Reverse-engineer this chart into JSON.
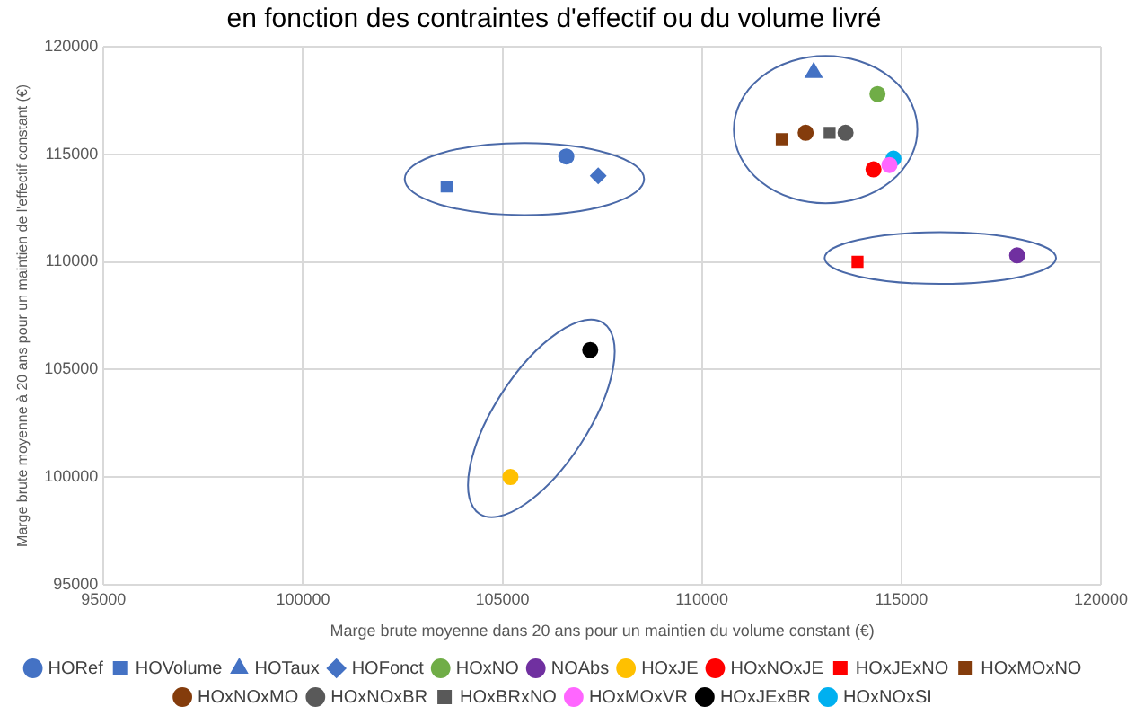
{
  "chart_data": {
    "type": "scatter",
    "title": "en fonction des contraintes d'effectif ou du volume livré",
    "xlabel": "Marge brute moyenne dans 20 ans pour un maintien du volume constant (€)",
    "ylabel": "Marge brute moyenne à 20 ans pour un maintien de l'effectif constant (€)",
    "xlim": [
      95000,
      120000
    ],
    "xticks": [
      95000,
      100000,
      105000,
      110000,
      115000,
      120000
    ],
    "ylim": [
      95000,
      120000
    ],
    "yticks": [
      95000,
      100000,
      105000,
      110000,
      115000,
      120000
    ],
    "grid": true,
    "legend": "bottom",
    "series": [
      {
        "name": "HORef",
        "color": "#4472c4",
        "marker": "circle",
        "x": [
          106600
        ],
        "values": [
          114900
        ]
      },
      {
        "name": "HOVolume",
        "color": "#4472c4",
        "marker": "square",
        "x": [
          103600
        ],
        "values": [
          113500
        ]
      },
      {
        "name": "HOTaux",
        "color": "#4472c4",
        "marker": "triangle",
        "x": [
          112800
        ],
        "values": [
          118800
        ]
      },
      {
        "name": "HOFonct",
        "color": "#4472c4",
        "marker": "diamond",
        "x": [
          107400
        ],
        "values": [
          114000
        ]
      },
      {
        "name": "HOxNO",
        "color": "#70ad47",
        "marker": "circle",
        "x": [
          114400
        ],
        "values": [
          117800
        ]
      },
      {
        "name": "NOAbs",
        "color": "#7030a0",
        "marker": "circle",
        "x": [
          117900
        ],
        "values": [
          110300
        ]
      },
      {
        "name": "HOxJE",
        "color": "#ffc000",
        "marker": "circle",
        "x": [
          105200
        ],
        "values": [
          100000
        ]
      },
      {
        "name": "HOxNOxJE",
        "color": "#ff0000",
        "marker": "circle",
        "x": [
          114300
        ],
        "values": [
          114300
        ]
      },
      {
        "name": "HOxJExNO",
        "color": "#ff0000",
        "marker": "square",
        "x": [
          113900
        ],
        "values": [
          110000
        ]
      },
      {
        "name": "HOxMOxNO",
        "color": "#843c0c",
        "marker": "square",
        "x": [
          112000
        ],
        "values": [
          115700
        ]
      },
      {
        "name": "HOxNOxMO",
        "color": "#843c0c",
        "marker": "circle",
        "x": [
          112600
        ],
        "values": [
          116000
        ]
      },
      {
        "name": "HOxNOxBR",
        "color": "#595959",
        "marker": "circle",
        "x": [
          113600
        ],
        "values": [
          116000
        ]
      },
      {
        "name": "HOxBRxNO",
        "color": "#595959",
        "marker": "square",
        "x": [
          113200
        ],
        "values": [
          116000
        ]
      },
      {
        "name": "HOxMOxVR",
        "color": "#ff66ff",
        "marker": "circle",
        "x": [
          114700
        ],
        "values": [
          114500
        ]
      },
      {
        "name": "HOxJExBR",
        "color": "#000000",
        "marker": "circle",
        "x": [
          107200
        ],
        "values": [
          105900
        ]
      },
      {
        "name": "HOxNOxSI",
        "color": "#00b0f0",
        "marker": "circle",
        "x": [
          114800
        ],
        "values": [
          114800
        ]
      }
    ]
  }
}
